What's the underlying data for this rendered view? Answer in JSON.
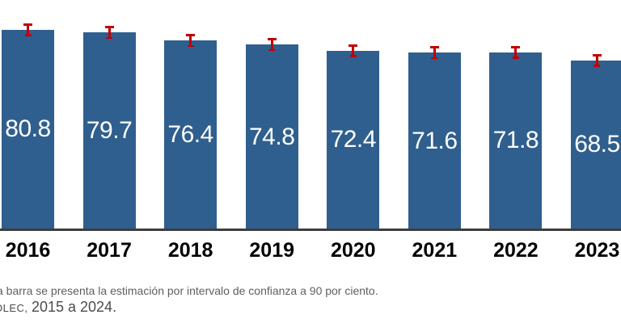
{
  "chart_data": {
    "type": "bar",
    "title": "",
    "xlabel": "",
    "ylabel": "",
    "categories": [
      "2016",
      "2017",
      "2018",
      "2019",
      "2020",
      "2021",
      "2022",
      "2023"
    ],
    "values": [
      80.8,
      79.7,
      76.4,
      74.8,
      72.4,
      71.6,
      71.8,
      68.5
    ],
    "ylim": [
      0,
      93
    ],
    "grid": false,
    "legend": false,
    "value_labels": "inside-center, white",
    "bar_color": "#2f5f8e",
    "axis_line_color": "#3d3d3d",
    "error_bars": {
      "meaning": "intervalo de confianza a 90 por ciento",
      "color": "#c00000",
      "estimated_halfwidth": 2.6
    }
  },
  "footer": {
    "line1": "a barra se presenta la estimación por intervalo de confianza a 90 por ciento.",
    "line2_acronym": "OLEC,",
    "line2_years": "2015 a 2024."
  }
}
